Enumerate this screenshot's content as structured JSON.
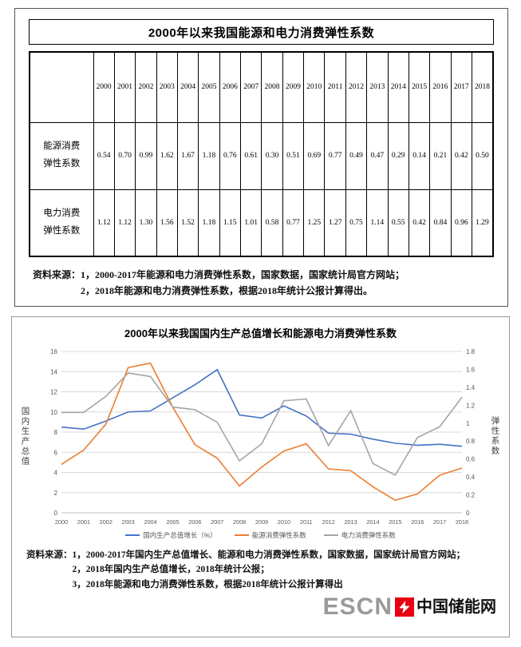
{
  "table_section": {
    "title": "2000年以来我国能源和电力消费弹性系数",
    "years": [
      "2000",
      "2001",
      "2002",
      "2003",
      "2004",
      "2005",
      "2006",
      "2007",
      "2008",
      "2009",
      "2010",
      "2011",
      "2012",
      "2013",
      "2014",
      "2015",
      "2016",
      "2017",
      "2018"
    ],
    "rows": [
      {
        "label_lines": [
          "能源消费",
          "弹性系数"
        ],
        "values": [
          "0.54",
          "0.70",
          "0.99",
          "1.62",
          "1.67",
          "1.18",
          "0.76",
          "0.61",
          "0.30",
          "0.51",
          "0.69",
          "0.77",
          "0.49",
          "0.47",
          "0.29",
          "0.14",
          "0.21",
          "0.42",
          "0.50"
        ]
      },
      {
        "label_lines": [
          "电力消费",
          "弹性系数"
        ],
        "values": [
          "1.12",
          "1.12",
          "1.30",
          "1.56",
          "1.52",
          "1.18",
          "1.15",
          "1.01",
          "0.58",
          "0.77",
          "1.25",
          "1.27",
          "0.75",
          "1.14",
          "0.55",
          "0.42",
          "0.84",
          "0.96",
          "1.29"
        ]
      }
    ],
    "notes": [
      "资料来源：1，2000-2017年能源和电力消费弹性系数，国家数据，国家统计局官方网站；",
      "2，2018年能源和电力消费弹性系数，根据2018年统计公报计算得出。"
    ]
  },
  "chart_section": {
    "notes": [
      "资料来源：1，2000-2017年国内生产总值增长、能源和电力消费弹性系数，国家数据，国家统计局官方网站；",
      "2，2018年国内生产总值增长，2018年统计公报；",
      "3，2018年能源和电力消费弹性系数，根据2018年统计公报计算得出"
    ],
    "logo": {
      "text_en": "ESCN",
      "text_cn": "中国储能网"
    }
  },
  "chart_data": {
    "type": "line",
    "title": "2000年以来我国国内生产总值增长和能源电力消费弹性系数",
    "x": [
      "2000",
      "2001",
      "2002",
      "2003",
      "2004",
      "2005",
      "2006",
      "2007",
      "2008",
      "2009",
      "2010",
      "2011",
      "2012",
      "2013",
      "2014",
      "2015",
      "2016",
      "2017",
      "2018"
    ],
    "left_axis": {
      "label": "国内生产总值",
      "min": 0,
      "max": 16,
      "ticks": [
        0,
        2,
        4,
        6,
        8,
        10,
        12,
        14,
        16
      ]
    },
    "right_axis": {
      "label": "弹性系数",
      "min": 0,
      "max": 1.8,
      "ticks": [
        0,
        0.2,
        0.4,
        0.6,
        0.8,
        1,
        1.2,
        1.4,
        1.6,
        1.8
      ]
    },
    "grid": "horizontal",
    "legend_position": "bottom",
    "series": [
      {
        "name": "国内生产总值增长（%）",
        "axis": "left",
        "color": "#4472C4",
        "values": [
          8.5,
          8.3,
          9.1,
          10.0,
          10.1,
          11.4,
          12.7,
          14.2,
          9.7,
          9.4,
          10.6,
          9.6,
          7.9,
          7.8,
          7.3,
          6.9,
          6.7,
          6.8,
          6.6
        ]
      },
      {
        "name": "能源消费弹性系数",
        "axis": "right",
        "color": "#ED7D31",
        "values": [
          0.54,
          0.7,
          0.99,
          1.62,
          1.67,
          1.18,
          0.76,
          0.61,
          0.3,
          0.51,
          0.69,
          0.77,
          0.49,
          0.47,
          0.29,
          0.14,
          0.21,
          0.42,
          0.5
        ]
      },
      {
        "name": "电力消费弹性系数",
        "axis": "right",
        "color": "#A5A5A5",
        "values": [
          1.12,
          1.12,
          1.3,
          1.56,
          1.52,
          1.18,
          1.15,
          1.01,
          0.58,
          0.77,
          1.25,
          1.27,
          0.75,
          1.14,
          0.55,
          0.42,
          0.84,
          0.96,
          1.29
        ]
      }
    ]
  }
}
